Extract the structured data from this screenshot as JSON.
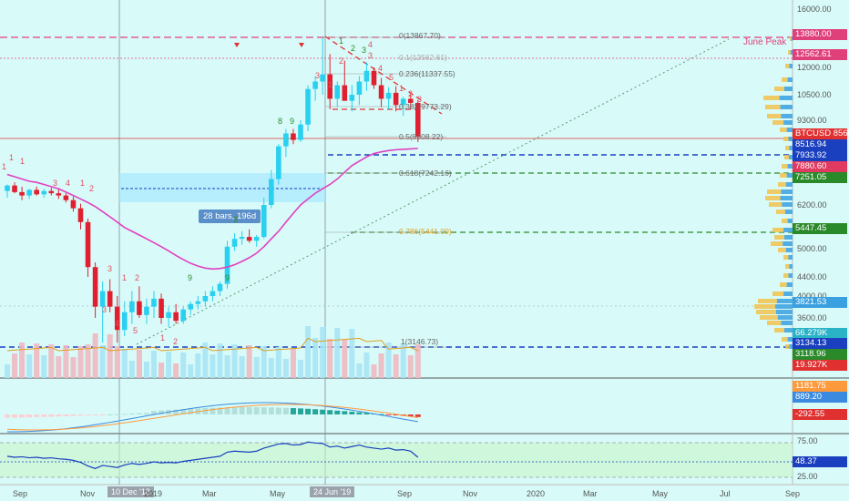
{
  "price_axis": {
    "ticks": [
      "16000.00",
      "14000.00",
      "12000.00",
      "10500.00",
      "9300.00",
      "8000.00",
      "6200.00",
      "5400.00",
      "5000.00",
      "4400.00",
      "4000.00",
      "3600.00"
    ],
    "tags": [
      {
        "label": "13880.00",
        "color": "#e0407a"
      },
      {
        "label": "12562.61",
        "color": "#e0407a"
      },
      {
        "label": "BTCUSD",
        "value": "8560.00",
        "color": "#e03030"
      },
      {
        "label": "8516.94",
        "color": "#1a3fbf"
      },
      {
        "label": "7933.92",
        "color": "#1a3fbf"
      },
      {
        "label": "7880.60",
        "color": "#e03a60"
      },
      {
        "label": "7251.05",
        "color": "#2a8a2a"
      },
      {
        "label": "5447.45",
        "color": "#2a8a2a"
      },
      {
        "label": "3821.53",
        "color": "#3aa0e0"
      },
      {
        "label": "66.279K",
        "color": "#2ab3c7"
      },
      {
        "label": "3134.13",
        "color": "#1a3fbf"
      },
      {
        "label": "3118.96",
        "color": "#2a8a2a"
      },
      {
        "label": "19.927K",
        "color": "#e03030"
      }
    ],
    "macd_tags": [
      {
        "label": "1181.75",
        "color": "#ff9a3c"
      },
      {
        "label": "889.20",
        "color": "#3a8ae0"
      },
      {
        "label": "-292.55",
        "color": "#e03030"
      }
    ],
    "rsi_ticks": [
      "75.00",
      "25.00"
    ],
    "rsi_tag": {
      "label": "48.37",
      "color": "#1a3fbf"
    }
  },
  "annotations": {
    "june_peak": "June Peak",
    "bars_box": "28 bars, 196d",
    "fib_levels": [
      "0(13867.70)",
      "0.236(11337.55)",
      "0.382(9773.29)",
      "0.5(8508.22)",
      "0.618(7242.16)",
      "0.786(5441.00)",
      "1(3146.73)"
    ],
    "fib_faded": "0.1(12562.61)"
  },
  "time_axis": {
    "labels": [
      "Sep",
      "Nov",
      "10 Dec '18",
      "2019",
      "Mar",
      "May",
      "24 Jun '19",
      "Sep",
      "Nov",
      "2020",
      "Mar",
      "May",
      "Jul",
      "Sep"
    ],
    "highlighted": [
      "10 Dec '18",
      "24 Jun '19"
    ]
  },
  "td_sequential_red": [
    "1",
    "1",
    "1",
    "3",
    "4",
    "1",
    "2",
    "3",
    "1",
    "2",
    "3",
    "4",
    "5",
    "1",
    "2",
    "3",
    "1",
    "2",
    "3",
    "4",
    "5",
    "1",
    "2",
    "3",
    "4"
  ],
  "td_sequential_green": [
    "8",
    "9",
    "3",
    "9",
    "9",
    "1",
    "2",
    "3"
  ],
  "colors": {
    "background": "#d8fbf9",
    "bull": "#2ad0f0",
    "bear": "#e02030",
    "ma": "#e040c0",
    "june_peak": "#e0407a"
  },
  "chart_data": {
    "type": "candlestick",
    "candles_ohlc": [
      [
        6800,
        7100,
        6500,
        7050
      ],
      [
        7050,
        7200,
        6700,
        6750
      ],
      [
        6750,
        7000,
        6400,
        6600
      ],
      [
        6600,
        6900,
        6450,
        6850
      ],
      [
        6850,
        7000,
        6600,
        6650
      ],
      [
        6650,
        6900,
        6500,
        6800
      ],
      [
        6800,
        6950,
        6600,
        6700
      ],
      [
        6700,
        6900,
        6450,
        6600
      ],
      [
        6600,
        6700,
        6300,
        6400
      ],
      [
        6400,
        6550,
        6000,
        6100
      ],
      [
        6100,
        6250,
        5500,
        5700
      ],
      [
        5700,
        5800,
        4400,
        4600
      ],
      [
        4600,
        4700,
        3600,
        3800
      ],
      [
        3800,
        4300,
        3200,
        4100
      ],
      [
        4100,
        4350,
        3700,
        3800
      ],
      [
        3800,
        4000,
        3200,
        3400
      ],
      [
        3400,
        3900,
        3300,
        3700
      ],
      [
        3700,
        4100,
        3500,
        3900
      ],
      [
        3900,
        4200,
        3600,
        3650
      ],
      [
        3650,
        3950,
        3500,
        3800
      ],
      [
        3800,
        4100,
        3600,
        3950
      ],
      [
        3950,
        4050,
        3500,
        3600
      ],
      [
        3600,
        3800,
        3450,
        3700
      ],
      [
        3700,
        3850,
        3500,
        3550
      ],
      [
        3550,
        3800,
        3500,
        3750
      ],
      [
        3750,
        3900,
        3650,
        3850
      ],
      [
        3850,
        4000,
        3750,
        3900
      ],
      [
        3900,
        4100,
        3800,
        4000
      ],
      [
        4000,
        4200,
        3900,
        4100
      ],
      [
        4100,
        4300,
        4000,
        4250
      ],
      [
        4250,
        5200,
        4150,
        5050
      ],
      [
        5050,
        5400,
        4950,
        5250
      ],
      [
        5250,
        5450,
        5100,
        5300
      ],
      [
        5300,
        5500,
        5150,
        5200
      ],
      [
        5200,
        5350,
        5050,
        5300
      ],
      [
        5300,
        6500,
        5250,
        6200
      ],
      [
        6200,
        7500,
        6100,
        7300
      ],
      [
        7300,
        8200,
        7100,
        8100
      ],
      [
        8100,
        8900,
        7800,
        8700
      ],
      [
        8700,
        8900,
        8200,
        8400
      ],
      [
        8400,
        9300,
        8300,
        9100
      ],
      [
        9100,
        11000,
        8800,
        10800
      ],
      [
        10800,
        11500,
        10200,
        11200
      ],
      [
        11200,
        13880,
        10500,
        11600
      ],
      [
        11600,
        12800,
        9800,
        10300
      ],
      [
        10300,
        11200,
        9900,
        11000
      ],
      [
        11000,
        12400,
        10200,
        10200
      ],
      [
        10200,
        11000,
        9700,
        10500
      ],
      [
        10500,
        11500,
        10000,
        11200
      ],
      [
        11200,
        12300,
        10700,
        11800
      ],
      [
        11800,
        12000,
        10800,
        11000
      ],
      [
        11000,
        11400,
        9900,
        10300
      ],
      [
        10300,
        10900,
        9800,
        10600
      ],
      [
        10600,
        10950,
        9700,
        10000
      ],
      [
        10000,
        10400,
        9500,
        10300
      ],
      [
        10300,
        10500,
        9800,
        10100
      ],
      [
        10100,
        10250,
        8300,
        8560
      ]
    ],
    "ma_present": true,
    "volume": "bars",
    "indicators": [
      "MACD",
      "RSI"
    ],
    "fib_retracement": [
      0,
      0.236,
      0.382,
      0.5,
      0.618,
      0.786,
      1
    ],
    "rsi_bands": [
      75,
      25
    ]
  }
}
